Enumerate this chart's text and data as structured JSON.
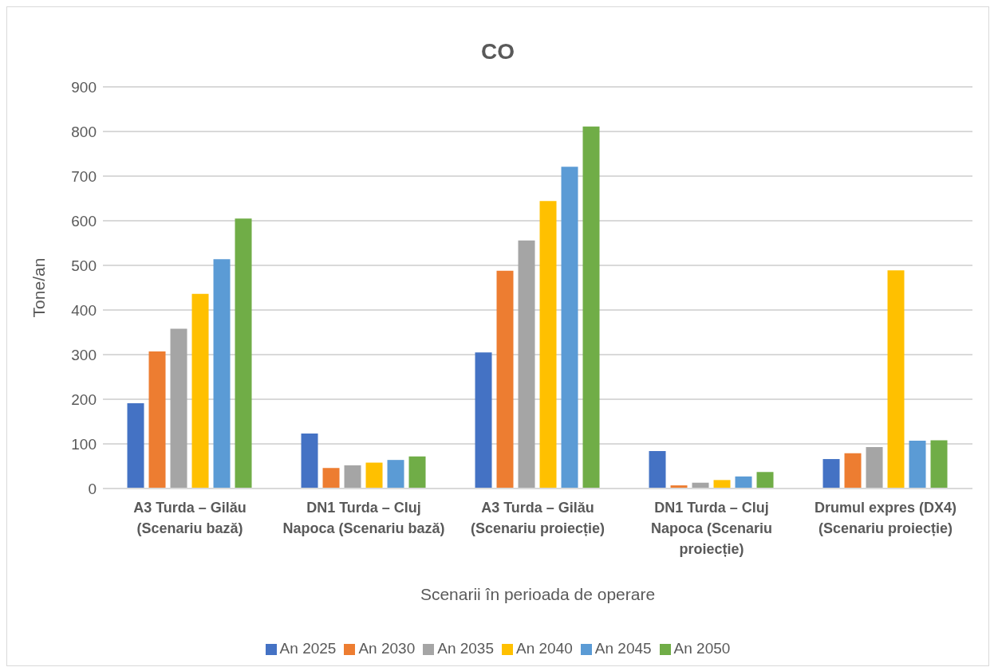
{
  "chart_data": {
    "type": "bar",
    "title": "CO",
    "xlabel": "Scenarii în perioada de operare",
    "ylabel": "Tone/an",
    "categories": [
      "A3 Turda – Gilău (Scenariu bază)",
      "DN1 Turda – Cluj Napoca (Scenariu bază)",
      "A3 Turda – Gilău (Scenariu proiecție)",
      "DN1 Turda – Cluj Napoca (Scenariu proiecție)",
      "Drumul expres (DX4) (Scenariu proiecție)"
    ],
    "series": [
      {
        "name": "An 2025",
        "color": "#4472c4",
        "values": [
          191,
          123,
          305,
          84,
          66
        ]
      },
      {
        "name": "An 2030",
        "color": "#ed7d31",
        "values": [
          307,
          46,
          488,
          7,
          79
        ]
      },
      {
        "name": "An 2035",
        "color": "#a5a5a5",
        "values": [
          358,
          52,
          556,
          13,
          93
        ]
      },
      {
        "name": "An 2040",
        "color": "#ffc000",
        "values": [
          436,
          58,
          644,
          19,
          489
        ]
      },
      {
        "name": "An 2045",
        "color": "#5b9bd5",
        "values": [
          514,
          64,
          721,
          27,
          107
        ]
      },
      {
        "name": "An 2050",
        "color": "#70ad47",
        "values": [
          605,
          72,
          811,
          37,
          108
        ]
      }
    ],
    "ylim": [
      0,
      900
    ],
    "yticks": [
      0,
      100,
      200,
      300,
      400,
      500,
      600,
      700,
      800,
      900
    ],
    "grid": "y",
    "legend": "bottom"
  }
}
